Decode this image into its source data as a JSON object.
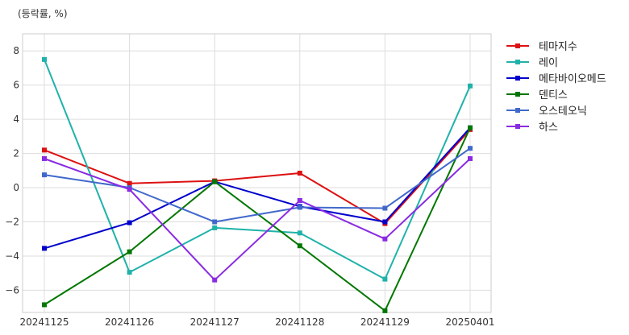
{
  "chart_data": {
    "type": "line",
    "unit_label": "(등락률, %)",
    "x": [
      "20241125",
      "20241126",
      "20241127",
      "20241128",
      "20241129",
      "20250401"
    ],
    "y_ticks": [
      8,
      6,
      4,
      2,
      0,
      -2,
      -4,
      -6
    ],
    "ylim": [
      -7.3,
      9.0
    ],
    "grid": true,
    "legend_position": "right-top",
    "series": [
      {
        "name": "테마지수",
        "color": "#dd1111",
        "values": [
          2.2,
          0.25,
          0.4,
          0.85,
          -2.1,
          3.4
        ]
      },
      {
        "name": "레이",
        "color": "#20b2aa",
        "values": [
          7.5,
          -4.95,
          -2.35,
          -2.65,
          -5.35,
          5.95
        ]
      },
      {
        "name": "메타바이오메드",
        "color": "#0000cc",
        "values": [
          -3.55,
          -2.05,
          0.35,
          -1.1,
          -2.0,
          3.5
        ]
      },
      {
        "name": "덴티스",
        "color": "#007700",
        "values": [
          -6.85,
          -3.75,
          0.35,
          -3.4,
          -7.2,
          3.5
        ]
      },
      {
        "name": "오스테오닉",
        "color": "#4169cc",
        "values": [
          0.75,
          0.0,
          -2.0,
          -1.15,
          -1.2,
          2.3
        ]
      },
      {
        "name": "하스",
        "color": "#8a2be2",
        "values": [
          1.7,
          -0.1,
          -5.4,
          -0.75,
          -3.0,
          1.7
        ]
      }
    ]
  }
}
